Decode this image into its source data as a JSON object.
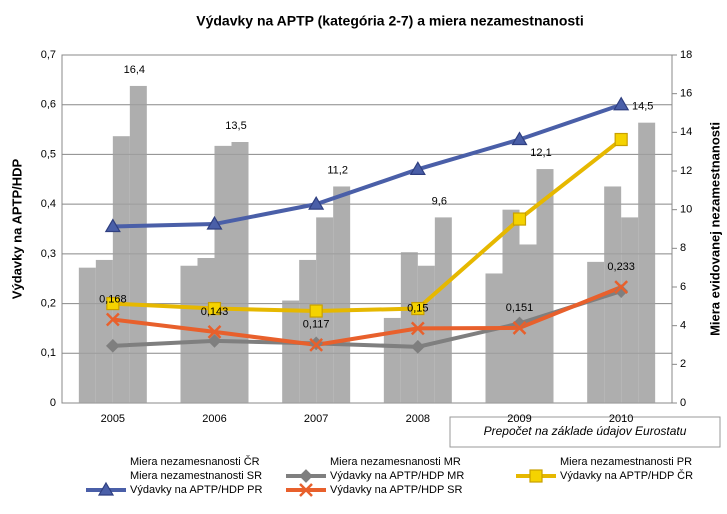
{
  "chart_data": {
    "type": "combo",
    "title": "Výdavky na APTP (kategória 2-7) a miera nezamestnanosti",
    "y_label": "Výdavky na APTP/HDP",
    "y2_label": "Miera evidovanej nezamestnanosti",
    "annotation": "Prepočet na základe údajov Eurostatu",
    "categories": [
      "2005",
      "2006",
      "2007",
      "2008",
      "2009",
      "2010"
    ],
    "ylim": [
      0,
      0.7
    ],
    "yticks": [
      0,
      {
        "value": 0.1,
        "label": "0,1"
      },
      {
        "value": 0.2,
        "label": "0,2"
      },
      {
        "value": 0.3,
        "label": "0,3"
      },
      {
        "value": 0.4,
        "label": "0,4"
      },
      {
        "value": 0.5,
        "label": "0,5"
      },
      {
        "value": 0.6,
        "label": "0,6"
      },
      {
        "value": 0.7,
        "label": "0,7"
      }
    ],
    "y2lim": [
      0,
      18
    ],
    "y2ticks": [
      0,
      2,
      4,
      6,
      8,
      10,
      12,
      14,
      16,
      18
    ],
    "grid": true,
    "series": [
      {
        "name": "Miera nezamesnanosti ČR",
        "type": "bar",
        "axis": "y2",
        "color": "#a0a0a0",
        "values": [
          7.0,
          7.1,
          5.3,
          4.4,
          6.7,
          7.3
        ]
      },
      {
        "name": "Miera nezamesnanosti MR",
        "type": "bar",
        "axis": "y2",
        "color": "#a0a0a0",
        "values": [
          7.4,
          7.5,
          7.4,
          7.8,
          10.0,
          11.2
        ]
      },
      {
        "name": "Miera nezamestnanosti PR",
        "type": "bar",
        "axis": "y2",
        "color": "#a0a0a0",
        "values": [
          13.8,
          13.3,
          9.6,
          7.1,
          8.2,
          9.6
        ]
      },
      {
        "name": "Miera nezamestnanosti SR",
        "type": "bar",
        "axis": "y2",
        "color": "#a0a0a0",
        "values": [
          16.4,
          13.5,
          11.2,
          9.6,
          12.1,
          14.5
        ],
        "value_labels": [
          "16,4",
          "13,5",
          "11,2",
          "9,6",
          "12,1",
          "14,5"
        ]
      },
      {
        "name": "Výdavky na APTP/HDP MR",
        "type": "line",
        "axis": "y",
        "color": "#7f7f7f",
        "marker": "diamond",
        "values": [
          0.115,
          0.125,
          0.12,
          0.113,
          0.16,
          0.225
        ]
      },
      {
        "name": "Výdavky na APTP/HDP ČR",
        "type": "line",
        "axis": "y",
        "color": "#e6b800",
        "marker": "square",
        "values": [
          0.2,
          0.19,
          0.185,
          0.19,
          0.37,
          0.53
        ]
      },
      {
        "name": "Výdavky na APTP/HDP PR",
        "type": "line",
        "axis": "y",
        "color": "#4a5fa8",
        "marker": "triangle",
        "values": [
          0.355,
          0.36,
          0.4,
          0.47,
          0.53,
          0.6
        ]
      },
      {
        "name": "Výdavky na APTP/HDP SR",
        "type": "line",
        "axis": "y",
        "color": "#e8602c",
        "marker": "x",
        "values": [
          0.168,
          0.143,
          0.117,
          0.15,
          0.151,
          0.233
        ],
        "value_labels": [
          "0,168",
          "0,143",
          "0,117",
          "0,15",
          "0,151",
          "0,233"
        ]
      }
    ]
  }
}
